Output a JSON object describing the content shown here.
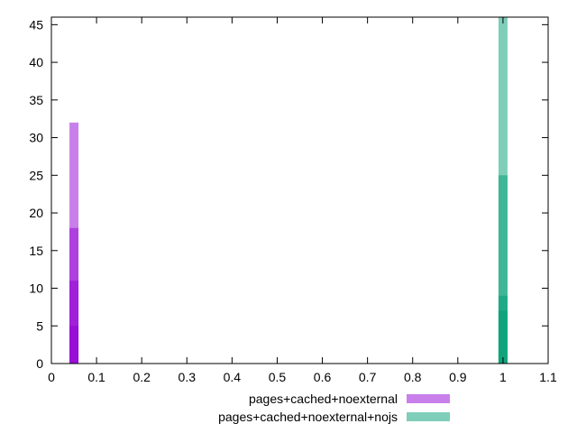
{
  "chart_data": {
    "type": "bar",
    "title": "",
    "xlabel": "",
    "ylabel": "",
    "xlim": [
      0,
      1.1
    ],
    "ylim": [
      0,
      46
    ],
    "x_ticks": [
      "0",
      "0.1",
      "0.2",
      "0.3",
      "0.4",
      "0.5",
      "0.6",
      "0.7",
      "0.8",
      "0.9",
      "1",
      "1.1"
    ],
    "y_ticks": [
      "0",
      "5",
      "10",
      "15",
      "20",
      "25",
      "30",
      "35",
      "40",
      "45"
    ],
    "grid": false,
    "legend_position": "bottom",
    "bar_width": 0.02,
    "series": [
      {
        "name": "pages+cached+noexternal",
        "color": "#9400d3",
        "bars": [
          {
            "x": 0.05,
            "y": 32
          },
          {
            "x": 0.05,
            "y": 18
          },
          {
            "x": 0.05,
            "y": 11
          },
          {
            "x": 0.05,
            "y": 5
          }
        ]
      },
      {
        "name": "pages+cached+noexternal+nojs",
        "color": "#009e73",
        "bars": [
          {
            "x": 1.0,
            "y": 46
          },
          {
            "x": 1.0,
            "y": 25
          },
          {
            "x": 1.0,
            "y": 9
          },
          {
            "x": 1.0,
            "y": 7
          }
        ]
      }
    ]
  }
}
